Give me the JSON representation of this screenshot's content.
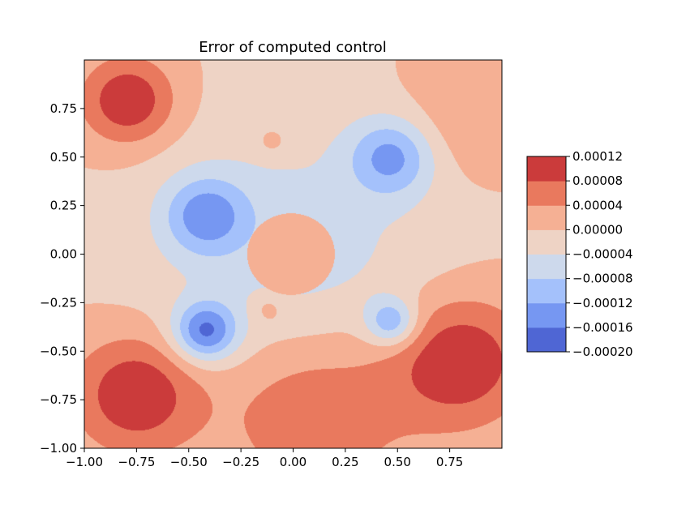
{
  "chart_data": {
    "type": "heatmap",
    "subtype": "filled-contour",
    "title": "Error of computed control",
    "xlabel": "",
    "ylabel": "",
    "xlim": [
      -1.0,
      1.0
    ],
    "ylim": [
      -1.0,
      1.0
    ],
    "xticks": [
      "−1.00",
      "−0.75",
      "−0.50",
      "−0.25",
      "0.00",
      "0.25",
      "0.50",
      "0.75"
    ],
    "xtick_values": [
      -1.0,
      -0.75,
      -0.5,
      -0.25,
      0.0,
      0.25,
      0.5,
      0.75
    ],
    "yticks": [
      "−1.00",
      "−0.75",
      "−0.50",
      "−0.25",
      "0.00",
      "0.25",
      "0.50",
      "0.75"
    ],
    "ytick_values": [
      -1.0,
      -0.75,
      -0.5,
      -0.25,
      0.0,
      0.25,
      0.5,
      0.75
    ],
    "grid": false,
    "colormap": "coolwarm",
    "colorbar": {
      "levels": [
        -0.0002,
        -0.00016,
        -0.00012,
        -8e-05,
        -4e-05,
        0.0,
        4e-05,
        8e-05,
        0.00012
      ],
      "tick_labels": [
        "−0.00020",
        "−0.00016",
        "−0.00012",
        "−0.00008",
        "−0.00004",
        "0.00000",
        "0.00004",
        "0.00008",
        "0.00012"
      ],
      "band_colors": [
        "#4f66d4",
        "#7697f2",
        "#a4c1fb",
        "#cdd9ec",
        "#eed3c5",
        "#f5b094",
        "#e9795e",
        "#cb3b3b"
      ]
    },
    "hole": {
      "center": [
        -0.01,
        0.0
      ],
      "radius": 0.21,
      "value": "0.00000"
    },
    "features": [
      {
        "x": -0.79,
        "y": 0.79,
        "r": 0.22,
        "peak": 0.00012
      },
      {
        "x": -0.75,
        "y": -0.72,
        "r": 0.3,
        "peak": 0.00012
      },
      {
        "x": 0.8,
        "y": -0.55,
        "r": 0.33,
        "peak": 0.00012
      },
      {
        "x": 0.1,
        "y": -0.8,
        "r": 0.45,
        "peak": 8e-05
      },
      {
        "x": 0.85,
        "y": 0.72,
        "r": 0.3,
        "peak": 4e-05
      },
      {
        "x": -0.42,
        "y": 0.2,
        "r": 0.2,
        "peak": -0.00012
      },
      {
        "x": -0.42,
        "y": -0.4,
        "r": 0.15,
        "peak": -0.00016
      },
      {
        "x": 0.47,
        "y": 0.5,
        "r": 0.2,
        "peak": -0.00012
      },
      {
        "x": 0.47,
        "y": -0.35,
        "r": 0.12,
        "peak": -0.00012
      },
      {
        "x": -0.12,
        "y": -0.28,
        "r": 0.08,
        "peak": 4e-05
      },
      {
        "x": -0.1,
        "y": 0.58,
        "r": 0.07,
        "peak": 4e-05
      }
    ]
  }
}
